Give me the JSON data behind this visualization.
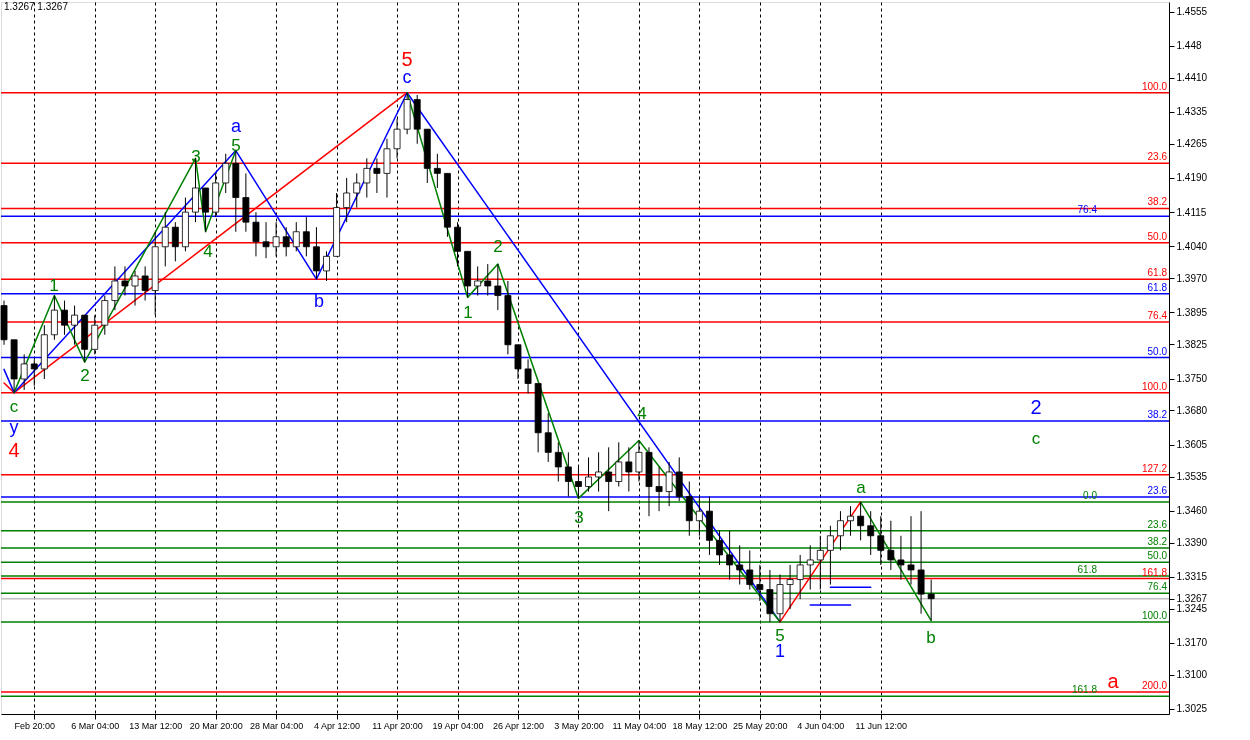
{
  "chart_data": {
    "type": "candlestick",
    "categories": [
      null,
      null,
      null,
      "Feb 20:00",
      null,
      null,
      null,
      null,
      null,
      "6 Mar 04:00",
      null,
      null,
      null,
      null,
      null,
      "13 Mar 12:00",
      null,
      null,
      null,
      null,
      null,
      "20 Mar 20:00",
      null,
      null,
      null,
      null,
      null,
      "28 Mar 04:00",
      null,
      null,
      null,
      null,
      null,
      "4 Apr 12:00",
      null,
      null,
      null,
      null,
      null,
      "11 Apr 20:00",
      null,
      null,
      null,
      null,
      null,
      "19 Apr 04:00",
      null,
      null,
      null,
      null,
      null,
      "26 Apr 12:00",
      null,
      null,
      null,
      null,
      null,
      "3 May 20:00",
      null,
      null,
      null,
      null,
      null,
      "11 May 04:00",
      null,
      null,
      null,
      null,
      null,
      "18 May 12:00",
      null,
      null,
      null,
      null,
      null,
      "25 May 20:00",
      null,
      null,
      null,
      null,
      null,
      "4 Jun 04:00",
      null,
      null,
      null,
      null,
      null,
      "11 Jun 12:00",
      null,
      null,
      null,
      null,
      null,
      null,
      null,
      null,
      null,
      null,
      null,
      null,
      null,
      null,
      null,
      null,
      null,
      null,
      null,
      null,
      null,
      null,
      null,
      null,
      null,
      null,
      null,
      null
    ],
    "ohlc": [
      [
        1.391,
        1.3921,
        1.3824,
        1.3835
      ],
      [
        1.3835,
        1.3835,
        1.3719,
        1.3749
      ],
      [
        1.3749,
        1.3803,
        1.3725,
        1.3782
      ],
      [
        1.3782,
        1.3792,
        1.3734,
        1.3771
      ],
      [
        1.3771,
        1.3867,
        1.3749,
        1.3846
      ],
      [
        1.3846,
        1.3932,
        1.3835,
        1.39
      ],
      [
        1.39,
        1.3921,
        1.3846,
        1.3867
      ],
      [
        1.3867,
        1.391,
        1.3824,
        1.3889
      ],
      [
        1.3889,
        1.3889,
        1.3786,
        1.3814
      ],
      [
        1.3814,
        1.3889,
        1.3803,
        1.3867
      ],
      [
        1.3867,
        1.3932,
        1.3846,
        1.3921
      ],
      [
        1.3921,
        1.3996,
        1.39,
        1.3964
      ],
      [
        1.3964,
        1.3996,
        1.3932,
        1.3953
      ],
      [
        1.3953,
        1.3986,
        1.391,
        1.3975
      ],
      [
        1.3975,
        1.3996,
        1.3921,
        1.3943
      ],
      [
        1.3943,
        1.4072,
        1.3889,
        1.4039
      ],
      [
        1.4039,
        1.4115,
        1.3996,
        1.4082
      ],
      [
        1.4082,
        1.4093,
        1.4007,
        1.4039
      ],
      [
        1.4039,
        1.4147,
        1.4029,
        1.4115
      ],
      [
        1.4115,
        1.4233,
        1.4093,
        1.4168
      ],
      [
        1.4168,
        1.4168,
        1.4072,
        1.4115
      ],
      [
        1.4115,
        1.42,
        1.4104,
        1.4179
      ],
      [
        1.4179,
        1.4243,
        1.4157,
        1.4222
      ],
      [
        1.4222,
        1.425,
        1.4072,
        1.4147
      ],
      [
        1.4147,
        1.42,
        1.4072,
        1.4093
      ],
      [
        1.4093,
        1.4115,
        1.4018,
        1.405
      ],
      [
        1.405,
        1.4093,
        1.4014,
        1.4039
      ],
      [
        1.4039,
        1.4093,
        1.4018,
        1.4061
      ],
      [
        1.4061,
        1.4082,
        1.4018,
        1.4039
      ],
      [
        1.4039,
        1.4093,
        1.4029,
        1.4072
      ],
      [
        1.4072,
        1.4104,
        1.4018,
        1.4039
      ],
      [
        1.4039,
        1.4082,
        1.3968,
        1.3986
      ],
      [
        1.3986,
        1.4029,
        1.3964,
        1.4018
      ],
      [
        1.4018,
        1.4157,
        1.4018,
        1.4125
      ],
      [
        1.4125,
        1.419,
        1.4093,
        1.4157
      ],
      [
        1.4157,
        1.42,
        1.4125,
        1.4179
      ],
      [
        1.4179,
        1.4233,
        1.4147,
        1.4211
      ],
      [
        1.4211,
        1.4233,
        1.4157,
        1.42
      ],
      [
        1.42,
        1.4276,
        1.4147,
        1.4254
      ],
      [
        1.4254,
        1.4319,
        1.4233,
        1.4297
      ],
      [
        1.4297,
        1.4377,
        1.4286,
        1.4362
      ],
      [
        1.4362,
        1.4372,
        1.4265,
        1.4297
      ],
      [
        1.4297,
        1.4297,
        1.4179,
        1.4211
      ],
      [
        1.4211,
        1.4243,
        1.4168,
        1.42
      ],
      [
        1.42,
        1.42,
        1.4061,
        1.4082
      ],
      [
        1.4082,
        1.4093,
        1.3996,
        1.4029
      ],
      [
        1.4029,
        1.4029,
        1.3928,
        1.3953
      ],
      [
        1.3953,
        1.3996,
        1.3932,
        1.3964
      ],
      [
        1.3964,
        1.4001,
        1.3932,
        1.3953
      ],
      [
        1.3953,
        1.4001,
        1.39,
        1.3932
      ],
      [
        1.3932,
        1.3964,
        1.3803,
        1.3824
      ],
      [
        1.3824,
        1.3824,
        1.3749,
        1.3771
      ],
      [
        1.3771,
        1.3792,
        1.3717,
        1.3739
      ],
      [
        1.3739,
        1.3739,
        1.3588,
        1.3631
      ],
      [
        1.3631,
        1.3674,
        1.3567,
        1.3588
      ],
      [
        1.3588,
        1.361,
        1.3524,
        1.3556
      ],
      [
        1.3556,
        1.3588,
        1.3491,
        1.3524
      ],
      [
        1.3524,
        1.3556,
        1.3487,
        1.3513
      ],
      [
        1.3513,
        1.3577,
        1.3502,
        1.3534
      ],
      [
        1.3534,
        1.3588,
        1.3502,
        1.3545
      ],
      [
        1.3545,
        1.3599,
        1.3459,
        1.3524
      ],
      [
        1.3524,
        1.361,
        1.3513,
        1.3567
      ],
      [
        1.3567,
        1.3599,
        1.3502,
        1.3545
      ],
      [
        1.3545,
        1.3614,
        1.3524,
        1.3588
      ],
      [
        1.3588,
        1.3599,
        1.3448,
        1.3513
      ],
      [
        1.3513,
        1.3556,
        1.3459,
        1.3502
      ],
      [
        1.3502,
        1.3567,
        1.347,
        1.3545
      ],
      [
        1.3545,
        1.3577,
        1.3481,
        1.3491
      ],
      [
        1.3491,
        1.3524,
        1.3405,
        1.3438
      ],
      [
        1.3438,
        1.3491,
        1.3405,
        1.3459
      ],
      [
        1.3459,
        1.3491,
        1.3363,
        1.3395
      ],
      [
        1.3395,
        1.3416,
        1.3341,
        1.3363
      ],
      [
        1.3363,
        1.3416,
        1.3309,
        1.3341
      ],
      [
        1.3341,
        1.3384,
        1.3298,
        1.333
      ],
      [
        1.333,
        1.3373,
        1.3287,
        1.3298
      ],
      [
        1.3298,
        1.3341,
        1.3262,
        1.3287
      ],
      [
        1.3287,
        1.333,
        1.3216,
        1.3234
      ],
      [
        1.3234,
        1.332,
        1.3216,
        1.3298
      ],
      [
        1.3298,
        1.3341,
        1.3244,
        1.3309
      ],
      [
        1.3309,
        1.3363,
        1.3266,
        1.3341
      ],
      [
        1.3341,
        1.3384,
        1.3287,
        1.3352
      ],
      [
        1.3352,
        1.3405,
        1.3287,
        1.3373
      ],
      [
        1.3373,
        1.3427,
        1.3298,
        1.3405
      ],
      [
        1.3405,
        1.3459,
        1.3373,
        1.3438
      ],
      [
        1.3438,
        1.347,
        1.3405,
        1.3448
      ],
      [
        1.3448,
        1.3479,
        1.3395,
        1.3427
      ],
      [
        1.3427,
        1.3459,
        1.3363,
        1.3405
      ],
      [
        1.3405,
        1.3448,
        1.3341,
        1.3373
      ],
      [
        1.3373,
        1.3438,
        1.333,
        1.3352
      ],
      [
        1.3352,
        1.3405,
        1.3309,
        1.3341
      ],
      [
        1.3341,
        1.3448,
        1.3298,
        1.333
      ],
      [
        1.333,
        1.3459,
        1.3234,
        1.3277
      ],
      [
        1.3277,
        1.3309,
        1.3219,
        1.3267
      ],
      null,
      null,
      null,
      null,
      null,
      null,
      null,
      null,
      null,
      null,
      null,
      null,
      null,
      null,
      null,
      null,
      null,
      null,
      null,
      null,
      null,
      null,
      null
    ],
    "series": [
      {
        "type": "line",
        "color": "#ff0000",
        "values": [
          1.374,
          1.3719,
          null,
          null,
          null,
          null,
          null,
          null,
          null,
          null,
          null,
          null,
          null,
          null,
          null,
          null,
          null,
          null,
          null,
          null,
          null,
          null,
          null,
          null,
          null,
          null,
          null,
          null,
          null,
          null,
          null,
          null,
          null,
          null,
          null,
          null,
          null,
          null,
          null,
          null,
          1.4377,
          null,
          null,
          null,
          null,
          null,
          null,
          null,
          null,
          null,
          null,
          null,
          null,
          null,
          null,
          null,
          null,
          null,
          null,
          null,
          null,
          null,
          null,
          null,
          null,
          null,
          null,
          null,
          null,
          null,
          null,
          null,
          null,
          null,
          null,
          null,
          null,
          null,
          null,
          null,
          null,
          null,
          null,
          null,
          null,
          null,
          null,
          null,
          null,
          null,
          null,
          null,
          null,
          null,
          null,
          null,
          null,
          null,
          null,
          null,
          null,
          null,
          null,
          null,
          null,
          null,
          null,
          null,
          null,
          null,
          null,
          null,
          null,
          null,
          null,
          null
        ]
      },
      {
        "type": "line",
        "color": "#0000ff",
        "values": [
          1.377,
          1.3719,
          null,
          null,
          null,
          null,
          null,
          null,
          null,
          null,
          null,
          null,
          null,
          null,
          null,
          null,
          null,
          null,
          null,
          null,
          null,
          null,
          null,
          1.425,
          null,
          null,
          null,
          null,
          null,
          null,
          null,
          1.3968,
          null,
          null,
          null,
          null,
          null,
          null,
          null,
          null,
          1.4377,
          null,
          null,
          null,
          null,
          null,
          null,
          null,
          null,
          null,
          null,
          null,
          null,
          null,
          null,
          null,
          null,
          null,
          null,
          null,
          null,
          null,
          null,
          null,
          null,
          null,
          null,
          null,
          null,
          null,
          null,
          null,
          null,
          null,
          null,
          null,
          null,
          1.3216,
          null,
          null,
          null,
          null,
          null,
          null,
          null,
          null,
          null,
          null,
          null,
          null,
          null,
          null,
          null,
          null,
          null,
          null,
          null,
          null,
          null,
          null,
          null,
          null,
          null,
          null,
          null,
          null,
          null,
          null,
          null,
          null,
          null,
          null,
          null,
          null,
          null,
          null
        ]
      },
      {
        "type": "line",
        "color": "#008000",
        "values": [
          null,
          1.3719,
          null,
          null,
          null,
          1.3932,
          null,
          null,
          1.3786,
          null,
          null,
          null,
          null,
          null,
          null,
          null,
          null,
          null,
          null,
          1.4233,
          1.4072,
          null,
          null,
          1.425,
          null,
          null,
          null,
          null,
          null,
          null,
          null,
          null,
          null,
          null,
          null,
          null,
          null,
          null,
          null,
          null,
          null,
          null,
          null,
          null,
          null,
          null,
          null,
          null,
          null,
          null,
          null,
          null,
          null,
          null,
          null,
          null,
          null,
          null,
          null,
          null,
          null,
          null,
          null,
          null,
          null,
          null,
          null,
          null,
          null,
          null,
          null,
          null,
          null,
          null,
          null,
          null,
          null,
          null,
          null,
          null,
          null,
          null,
          null,
          null,
          null,
          null,
          null,
          null,
          null,
          null,
          null,
          null,
          null,
          null,
          null,
          null,
          null,
          null,
          null,
          null,
          null,
          null,
          null,
          null,
          null,
          null,
          null,
          null,
          null,
          null,
          null,
          null,
          null,
          null,
          null,
          null
        ]
      },
      {
        "type": "line",
        "color": "#008000",
        "values": [
          null,
          null,
          null,
          null,
          null,
          null,
          null,
          null,
          null,
          null,
          null,
          null,
          null,
          null,
          null,
          null,
          null,
          null,
          null,
          null,
          null,
          null,
          null,
          null,
          null,
          null,
          null,
          null,
          null,
          null,
          null,
          null,
          null,
          null,
          null,
          null,
          null,
          null,
          null,
          null,
          1.4377,
          null,
          null,
          null,
          null,
          null,
          1.3928,
          null,
          null,
          1.4001,
          null,
          null,
          null,
          null,
          null,
          null,
          null,
          1.3487,
          null,
          null,
          null,
          null,
          null,
          1.3614,
          null,
          null,
          null,
          null,
          null,
          null,
          null,
          null,
          null,
          null,
          null,
          null,
          null,
          1.3216,
          null,
          null,
          null,
          null,
          null,
          null,
          null,
          null,
          null,
          null,
          null,
          null,
          null,
          null,
          null,
          null,
          null,
          null,
          null,
          null,
          null,
          null,
          null,
          null,
          null,
          null,
          null,
          null,
          null,
          null,
          null,
          null,
          null,
          null,
          null,
          null,
          null,
          null
        ]
      },
      {
        "type": "line",
        "color": "#ff0000",
        "values": [
          null,
          null,
          null,
          null,
          null,
          null,
          null,
          null,
          null,
          null,
          null,
          null,
          null,
          null,
          null,
          null,
          null,
          null,
          null,
          null,
          null,
          null,
          null,
          null,
          null,
          null,
          null,
          null,
          null,
          null,
          null,
          null,
          null,
          null,
          null,
          null,
          null,
          null,
          null,
          null,
          null,
          null,
          null,
          null,
          null,
          null,
          null,
          null,
          null,
          null,
          null,
          null,
          null,
          null,
          null,
          null,
          null,
          null,
          null,
          null,
          null,
          null,
          null,
          null,
          null,
          null,
          null,
          null,
          null,
          null,
          null,
          null,
          null,
          null,
          null,
          null,
          null,
          1.3216,
          null,
          null,
          null,
          null,
          null,
          null,
          null,
          1.3479,
          null,
          null,
          null,
          null,
          null,
          null,
          null,
          null,
          null,
          null,
          null,
          null,
          null,
          null,
          null,
          null,
          null,
          null,
          null,
          null,
          null,
          null,
          null,
          null,
          null,
          null,
          null,
          null,
          null,
          null
        ]
      },
      {
        "type": "line",
        "color": "#008000",
        "values": [
          null,
          null,
          null,
          null,
          null,
          null,
          null,
          null,
          null,
          null,
          null,
          null,
          null,
          null,
          null,
          null,
          null,
          null,
          null,
          null,
          null,
          null,
          null,
          null,
          null,
          null,
          null,
          null,
          null,
          null,
          null,
          null,
          null,
          null,
          null,
          null,
          null,
          null,
          null,
          null,
          null,
          null,
          null,
          null,
          null,
          null,
          null,
          null,
          null,
          null,
          null,
          null,
          null,
          null,
          null,
          null,
          null,
          null,
          null,
          null,
          null,
          null,
          null,
          null,
          null,
          null,
          null,
          null,
          null,
          null,
          null,
          null,
          null,
          null,
          null,
          null,
          null,
          null,
          null,
          null,
          null,
          null,
          null,
          null,
          null,
          1.3479,
          null,
          null,
          null,
          null,
          null,
          null,
          1.3219,
          null,
          null,
          null,
          null,
          null,
          null,
          null,
          null,
          null,
          null,
          null,
          null,
          null,
          null,
          null,
          null,
          null,
          null,
          null,
          null,
          null,
          null,
          null
        ]
      },
      {
        "type": "line",
        "color": "#0000ff",
        "values": [
          null,
          null,
          null,
          null,
          null,
          null,
          null,
          null,
          null,
          null,
          null,
          null,
          null,
          null,
          null,
          null,
          null,
          null,
          null,
          null,
          null,
          null,
          null,
          null,
          null,
          null,
          null,
          null,
          null,
          null,
          null,
          null,
          null,
          null,
          null,
          null,
          null,
          null,
          null,
          null,
          null,
          null,
          null,
          null,
          null,
          null,
          null,
          null,
          null,
          null,
          null,
          null,
          null,
          null,
          null,
          null,
          null,
          null,
          null,
          null,
          null,
          null,
          null,
          null,
          null,
          null,
          null,
          null,
          null,
          null,
          null,
          null,
          null,
          null,
          null,
          null,
          null,
          null,
          null,
          null,
          1.3253,
          1.3253,
          1.3253,
          1.3253,
          1.3253,
          null,
          null,
          null,
          null,
          null,
          null,
          null,
          null,
          null,
          null,
          null,
          null,
          null,
          null,
          null,
          null,
          null,
          null,
          null,
          null,
          null,
          null,
          null,
          null,
          null,
          null,
          null,
          null,
          null,
          null,
          null
        ]
      },
      {
        "type": "line",
        "color": "#0000ff",
        "values": [
          null,
          null,
          null,
          null,
          null,
          null,
          null,
          null,
          null,
          null,
          null,
          null,
          null,
          null,
          null,
          null,
          null,
          null,
          null,
          null,
          null,
          null,
          null,
          null,
          null,
          null,
          null,
          null,
          null,
          null,
          null,
          null,
          null,
          null,
          null,
          null,
          null,
          null,
          null,
          null,
          null,
          null,
          null,
          null,
          null,
          null,
          null,
          null,
          null,
          null,
          null,
          null,
          null,
          null,
          null,
          null,
          null,
          null,
          null,
          null,
          null,
          null,
          null,
          null,
          null,
          null,
          null,
          null,
          null,
          null,
          null,
          null,
          null,
          null,
          null,
          null,
          null,
          null,
          null,
          null,
          null,
          null,
          1.3292,
          1.3292,
          1.3292,
          1.3292,
          1.3292,
          null,
          null,
          null,
          null,
          null,
          null,
          null,
          null,
          null,
          null,
          null,
          null,
          null,
          null,
          null,
          null,
          null,
          null,
          null,
          null,
          null,
          null,
          null,
          null,
          null,
          null,
          null,
          null,
          null
        ]
      }
    ],
    "ylim": [
      1.3014,
      1.4576
    ],
    "yticks": [
      1.4555,
      1.448,
      {
        "value": 1.441,
        "label": "1.4410"
      },
      1.4335,
      1.4265,
      {
        "value": 1.419,
        "label": "1.4190"
      },
      1.4115,
      {
        "value": 1.404,
        "label": "1.4040"
      },
      {
        "value": 1.397,
        "label": "1.3970"
      },
      1.3895,
      1.3825,
      {
        "value": 1.375,
        "label": "1.3750"
      },
      {
        "value": 1.368,
        "label": "1.3680"
      },
      1.3605,
      1.3535,
      {
        "value": 1.346,
        "label": "1.3460"
      },
      {
        "value": 1.339,
        "label": "1.3390"
      },
      1.3315,
      1.3267,
      1.3245,
      {
        "value": 1.317,
        "label": "1.3170"
      },
      {
        "value": 1.31,
        "label": "1.3100"
      },
      1.3025
    ],
    "grid": "x",
    "ref_lines": [
      {
        "axis": "y",
        "value": 1.3267,
        "label": null,
        "color": "#c0c0c0"
      },
      {
        "axis": "y",
        "value": 1.4377,
        "color": "#ff0000"
      },
      {
        "axis": "y",
        "value": 1.4222,
        "color": "#ff0000"
      },
      {
        "axis": "y",
        "value": 1.4123,
        "color": "#ff0000"
      },
      {
        "axis": "y",
        "value": 1.4048,
        "color": "#ff0000"
      },
      {
        "axis": "y",
        "value": 1.3968,
        "color": "#ff0000"
      },
      {
        "axis": "y",
        "value": 1.3874,
        "color": "#ff0000"
      },
      {
        "axis": "y",
        "value": 1.3719,
        "color": "#ff0000"
      },
      {
        "axis": "y",
        "value": 1.3539,
        "color": "#ff0000"
      },
      {
        "axis": "y",
        "value": 1.3311,
        "color": "#ff0000"
      },
      {
        "axis": "y",
        "value": 1.3062,
        "color": "#ff0000"
      },
      {
        "axis": "y",
        "value": 1.4106,
        "color": "#0000ff"
      },
      {
        "axis": "y",
        "value": 1.3936,
        "color": "#0000ff"
      },
      {
        "axis": "y",
        "value": 1.3796,
        "color": "#0000ff"
      },
      {
        "axis": "y",
        "value": 1.3657,
        "color": "#0000ff"
      },
      {
        "axis": "y",
        "value": 1.349,
        "color": "#0000ff"
      },
      {
        "axis": "y",
        "value": 1.3479,
        "color": "#008000"
      },
      {
        "axis": "y",
        "value": 1.3416,
        "color": "#008000"
      },
      {
        "axis": "y",
        "value": 1.3378,
        "color": "#008000"
      },
      {
        "axis": "y",
        "value": 1.3347,
        "color": "#008000"
      },
      {
        "axis": "y",
        "value": 1.3317,
        "color": "#008000"
      },
      {
        "axis": "y",
        "value": 1.3279,
        "color": "#008000"
      },
      {
        "axis": "y",
        "value": 1.3216,
        "color": "#008000"
      },
      {
        "axis": "y",
        "value": 1.3053,
        "color": "#008000"
      }
    ],
    "annotations": [
      "1.3267 1.3267",
      "5",
      "c",
      "a",
      "5",
      "3",
      "4",
      "1",
      "2",
      "c",
      "y",
      "4",
      "b",
      "1",
      "2",
      "3",
      "4",
      "5",
      "1",
      "a",
      "b",
      "2",
      "c",
      "a",
      {
        "text": "100.0",
        "y": 1.4377
      },
      {
        "text": "23.6",
        "y": 1.4222
      },
      {
        "text": "38.2",
        "y": 1.4123
      },
      {
        "text": "50.0",
        "y": 1.4048
      },
      {
        "text": "61.8",
        "y": 1.3968
      },
      {
        "text": "76.4",
        "y": 1.3874
      },
      {
        "text": "100.0",
        "y": 1.3719
      },
      {
        "text": "127.2",
        "y": 1.3539
      },
      {
        "text": "161.8",
        "y": 1.3311
      },
      {
        "text": "200.0",
        "y": 1.3062
      },
      {
        "text": "76.4",
        "y": 1.4106
      },
      {
        "text": "61.8",
        "y": 1.3936
      },
      {
        "text": "50.0",
        "y": 1.3796
      },
      {
        "text": "38.2",
        "y": 1.3657
      },
      {
        "text": "23.6",
        "y": 1.349
      },
      {
        "text": "0.0",
        "y": 1.3479
      },
      {
        "text": "23.6",
        "y": 1.3416
      },
      {
        "text": "38.2",
        "y": 1.3378
      },
      {
        "text": "50.0",
        "y": 1.3347
      },
      {
        "text": "61.8",
        "y": 1.3317
      },
      {
        "text": "76.4",
        "y": 1.3279
      },
      {
        "text": "100.0",
        "y": 1.3216
      },
      {
        "text": "161.8",
        "y": 1.3053
      }
    ]
  }
}
